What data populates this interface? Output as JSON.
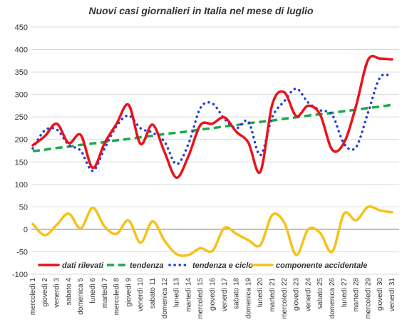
{
  "chart_data": {
    "type": "line",
    "title": "Nuovi casi giornalieri in Italia nel mese di luglio",
    "ylim": [
      -100,
      450
    ],
    "yticks": [
      -100,
      -50,
      0,
      50,
      100,
      150,
      200,
      250,
      300,
      350,
      400,
      450
    ],
    "grid": true,
    "legend_position": "bottom-inside",
    "categories": [
      "mercoledì 1",
      "giovedì 2",
      "venerdì 3",
      "sabato 4",
      "domenica 5",
      "lunedì 6",
      "martedì 7",
      "mercoledì 8",
      "giovedì 9",
      "venerdì 10",
      "sabato 11",
      "domenica 12",
      "lunedì 13",
      "martedì 14",
      "mercoledì 15",
      "giovedì 16",
      "venerdì 17",
      "sabato 18",
      "domenica 19",
      "lunedì 20",
      "martedì 21",
      "mercoledì 22",
      "giovedì 23",
      "venerdì 24",
      "sabato 25",
      "domenica 26",
      "lunedì 27",
      "martedì 28",
      "mercoledì 29",
      "giovedì 30",
      "venerdì 31"
    ],
    "series": [
      {
        "name": "dati rilevati",
        "color": "#e8141a",
        "style": "solid",
        "values": [
          187,
          207,
          235,
          192,
          210,
          137,
          192,
          235,
          277,
          190,
          233,
          172,
          115,
          163,
          232,
          235,
          249,
          217,
          193,
          128,
          278,
          305,
          252,
          275,
          255,
          177,
          193,
          275,
          377,
          380,
          378
        ]
      },
      {
        "name": "tendenza",
        "color": "#1aab4a",
        "style": "dashed",
        "values": [
          174,
          177,
          181,
          184,
          188,
          191,
          194,
          198,
          201,
          205,
          208,
          212,
          215,
          218,
          222,
          225,
          229,
          232,
          236,
          239,
          242,
          246,
          249,
          253,
          256,
          259,
          263,
          266,
          270,
          273,
          277
        ]
      },
      {
        "name": "tendenza e ciclo",
        "color": "#1e3fd8",
        "style": "dotted",
        "values": [
          180,
          220,
          222,
          188,
          175,
          130,
          180,
          230,
          253,
          225,
          215,
          195,
          145,
          190,
          270,
          280,
          246,
          225,
          240,
          165,
          250,
          285,
          313,
          282,
          265,
          255,
          190,
          183,
          260,
          338,
          340
        ]
      },
      {
        "name": "componente accidentale",
        "color": "#f5c21b",
        "style": "solid",
        "values": [
          12,
          -13,
          10,
          35,
          2,
          48,
          6,
          -10,
          20,
          -30,
          18,
          -25,
          -55,
          -57,
          -42,
          -48,
          3,
          -10,
          -24,
          -35,
          32,
          15,
          -57,
          0,
          -8,
          -50,
          35,
          20,
          50,
          42,
          38
        ]
      }
    ]
  }
}
